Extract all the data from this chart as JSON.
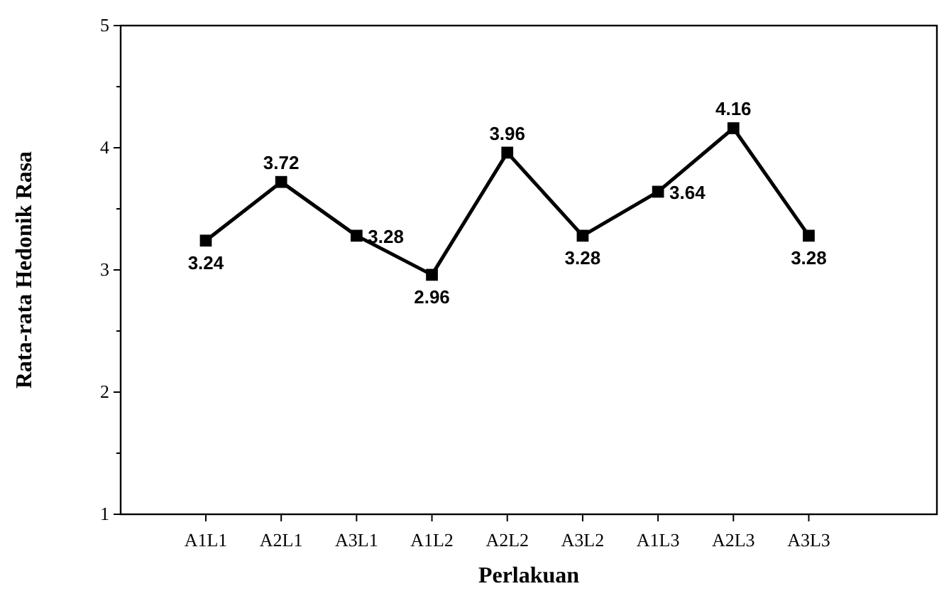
{
  "chart_data": {
    "type": "line",
    "xlabel": "Perlakuan",
    "ylabel": "Rata-rata Hedonik Rasa",
    "categories": [
      "A1L1",
      "A2L1",
      "A3L1",
      "A1L2",
      "A2L2",
      "A3L2",
      "A1L3",
      "A2L3",
      "A3L3"
    ],
    "series": [
      {
        "color": "#000000",
        "values": [
          3.24,
          3.72,
          3.28,
          2.96,
          3.96,
          3.28,
          3.64,
          4.16,
          3.28
        ]
      }
    ],
    "ylim": [
      1,
      5
    ],
    "yticks": [
      1,
      2,
      3,
      4,
      5
    ],
    "data_labels": true,
    "marker": "square",
    "line_style": "solid",
    "grid": false
  }
}
